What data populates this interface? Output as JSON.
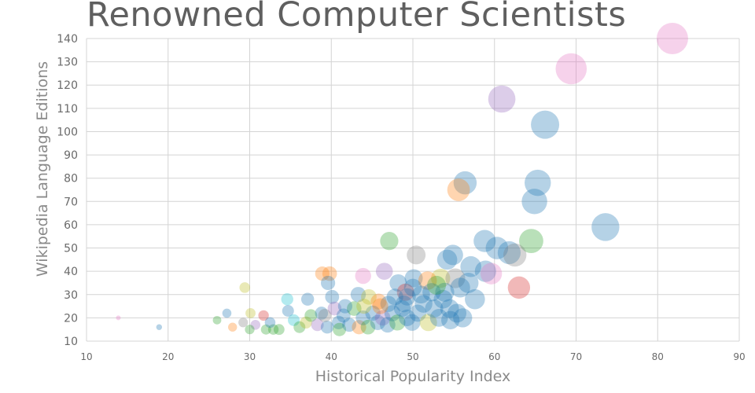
{
  "chart_data": {
    "type": "scatter",
    "title": "Renowned Computer Scientists",
    "xlabel": "Historical Popularity Index",
    "ylabel": "Wikipedia Language Editions",
    "xlim": [
      10,
      90
    ],
    "ylim": [
      10,
      140
    ],
    "xticks": [
      10,
      20,
      30,
      40,
      50,
      60,
      70,
      80,
      90
    ],
    "yticks": [
      10,
      20,
      30,
      40,
      50,
      60,
      70,
      80,
      90,
      100,
      110,
      120,
      130,
      140
    ],
    "grid": true,
    "legend": "none",
    "colors": {
      "blue": "#1f77b4",
      "orange": "#ff7f0e",
      "green": "#2ca02c",
      "red": "#d62728",
      "purple": "#9467bd",
      "pink": "#e377c2",
      "gray": "#7f7f7f",
      "olive": "#bcbd22",
      "cyan": "#17becf",
      "brown": "#8c564b"
    },
    "points": [
      {
        "x": 81.8,
        "y": 140,
        "color": "pink"
      },
      {
        "x": 69.4,
        "y": 127,
        "color": "pink"
      },
      {
        "x": 60.9,
        "y": 114,
        "color": "purple"
      },
      {
        "x": 66.2,
        "y": 103,
        "color": "blue"
      },
      {
        "x": 65.3,
        "y": 78,
        "color": "blue"
      },
      {
        "x": 56.4,
        "y": 78,
        "color": "blue"
      },
      {
        "x": 55.6,
        "y": 75,
        "color": "orange"
      },
      {
        "x": 64.9,
        "y": 70,
        "color": "blue"
      },
      {
        "x": 73.6,
        "y": 59,
        "color": "blue"
      },
      {
        "x": 64.5,
        "y": 53,
        "color": "green"
      },
      {
        "x": 58.8,
        "y": 53,
        "color": "blue"
      },
      {
        "x": 60.3,
        "y": 50,
        "color": "blue"
      },
      {
        "x": 61.8,
        "y": 48,
        "color": "blue"
      },
      {
        "x": 62.5,
        "y": 47,
        "color": "gray"
      },
      {
        "x": 54.9,
        "y": 47,
        "color": "blue"
      },
      {
        "x": 50.4,
        "y": 47,
        "color": "gray"
      },
      {
        "x": 47.1,
        "y": 53,
        "color": "green"
      },
      {
        "x": 54.2,
        "y": 45,
        "color": "blue"
      },
      {
        "x": 57.1,
        "y": 42,
        "color": "blue"
      },
      {
        "x": 58.9,
        "y": 40,
        "color": "blue"
      },
      {
        "x": 59.6,
        "y": 39,
        "color": "pink"
      },
      {
        "x": 46.5,
        "y": 40,
        "color": "purple"
      },
      {
        "x": 43.9,
        "y": 38,
        "color": "pink"
      },
      {
        "x": 38.9,
        "y": 39,
        "color": "orange"
      },
      {
        "x": 39.8,
        "y": 39,
        "color": "orange"
      },
      {
        "x": 39.6,
        "y": 35,
        "color": "blue"
      },
      {
        "x": 50.1,
        "y": 37,
        "color": "blue"
      },
      {
        "x": 53.4,
        "y": 37,
        "color": "olive"
      },
      {
        "x": 55.2,
        "y": 37,
        "color": "gray"
      },
      {
        "x": 51.8,
        "y": 36,
        "color": "orange"
      },
      {
        "x": 48.2,
        "y": 35,
        "color": "blue"
      },
      {
        "x": 56.8,
        "y": 35,
        "color": "blue"
      },
      {
        "x": 63.0,
        "y": 33,
        "color": "red"
      },
      {
        "x": 49.1,
        "y": 31,
        "color": "red"
      },
      {
        "x": 52.3,
        "y": 31,
        "color": "blue"
      },
      {
        "x": 55.8,
        "y": 33,
        "color": "blue"
      },
      {
        "x": 57.6,
        "y": 28,
        "color": "blue"
      },
      {
        "x": 29.4,
        "y": 33,
        "color": "olive"
      },
      {
        "x": 34.6,
        "y": 28,
        "color": "cyan"
      },
      {
        "x": 37.1,
        "y": 28,
        "color": "blue"
      },
      {
        "x": 40.1,
        "y": 29,
        "color": "blue"
      },
      {
        "x": 43.3,
        "y": 30,
        "color": "blue"
      },
      {
        "x": 44.6,
        "y": 29,
        "color": "olive"
      },
      {
        "x": 45.8,
        "y": 27,
        "color": "orange"
      },
      {
        "x": 47.0,
        "y": 26,
        "color": "blue"
      },
      {
        "x": 49.3,
        "y": 29,
        "color": "blue"
      },
      {
        "x": 53.7,
        "y": 28,
        "color": "blue"
      },
      {
        "x": 54.5,
        "y": 24,
        "color": "blue"
      },
      {
        "x": 27.2,
        "y": 22,
        "color": "blue"
      },
      {
        "x": 26.0,
        "y": 19,
        "color": "green"
      },
      {
        "x": 18.9,
        "y": 16,
        "color": "blue"
      },
      {
        "x": 13.9,
        "y": 20,
        "color": "pink"
      },
      {
        "x": 27.9,
        "y": 16,
        "color": "orange"
      },
      {
        "x": 29.2,
        "y": 18,
        "color": "gray"
      },
      {
        "x": 30.1,
        "y": 22,
        "color": "olive"
      },
      {
        "x": 30.7,
        "y": 17,
        "color": "purple"
      },
      {
        "x": 31.7,
        "y": 21,
        "color": "red"
      },
      {
        "x": 30.0,
        "y": 15,
        "color": "green"
      },
      {
        "x": 32.0,
        "y": 15,
        "color": "green"
      },
      {
        "x": 32.9,
        "y": 15,
        "color": "green"
      },
      {
        "x": 33.6,
        "y": 15,
        "color": "green"
      },
      {
        "x": 32.5,
        "y": 18,
        "color": "blue"
      },
      {
        "x": 34.7,
        "y": 23,
        "color": "blue"
      },
      {
        "x": 35.4,
        "y": 19,
        "color": "cyan"
      },
      {
        "x": 36.1,
        "y": 16,
        "color": "green"
      },
      {
        "x": 36.9,
        "y": 18,
        "color": "olive"
      },
      {
        "x": 37.5,
        "y": 21,
        "color": "green"
      },
      {
        "x": 38.3,
        "y": 17,
        "color": "purple"
      },
      {
        "x": 38.8,
        "y": 22,
        "color": "blue"
      },
      {
        "x": 39.5,
        "y": 16,
        "color": "blue"
      },
      {
        "x": 40.4,
        "y": 24,
        "color": "purple"
      },
      {
        "x": 40.9,
        "y": 18,
        "color": "blue"
      },
      {
        "x": 41.5,
        "y": 21,
        "color": "blue"
      },
      {
        "x": 41.0,
        "y": 15,
        "color": "green"
      },
      {
        "x": 42.2,
        "y": 17,
        "color": "blue"
      },
      {
        "x": 42.8,
        "y": 24,
        "color": "green"
      },
      {
        "x": 43.4,
        "y": 16,
        "color": "orange"
      },
      {
        "x": 43.9,
        "y": 20,
        "color": "blue"
      },
      {
        "x": 44.5,
        "y": 16,
        "color": "green"
      },
      {
        "x": 45.1,
        "y": 22,
        "color": "blue"
      },
      {
        "x": 45.7,
        "y": 18,
        "color": "blue"
      },
      {
        "x": 46.3,
        "y": 20,
        "color": "purple"
      },
      {
        "x": 46.9,
        "y": 17,
        "color": "blue"
      },
      {
        "x": 47.5,
        "y": 22,
        "color": "blue"
      },
      {
        "x": 48.1,
        "y": 18,
        "color": "green"
      },
      {
        "x": 48.7,
        "y": 24,
        "color": "blue"
      },
      {
        "x": 49.3,
        "y": 20,
        "color": "blue"
      },
      {
        "x": 49.9,
        "y": 18,
        "color": "blue"
      },
      {
        "x": 50.6,
        "y": 22,
        "color": "blue"
      },
      {
        "x": 51.3,
        "y": 26,
        "color": "blue"
      },
      {
        "x": 51.9,
        "y": 18,
        "color": "olive"
      },
      {
        "x": 52.6,
        "y": 24,
        "color": "blue"
      },
      {
        "x": 53.2,
        "y": 20,
        "color": "blue"
      },
      {
        "x": 53.9,
        "y": 31,
        "color": "blue"
      },
      {
        "x": 54.6,
        "y": 19,
        "color": "blue"
      },
      {
        "x": 55.4,
        "y": 22,
        "color": "blue"
      },
      {
        "x": 56.1,
        "y": 20,
        "color": "blue"
      },
      {
        "x": 47.8,
        "y": 29,
        "color": "blue"
      },
      {
        "x": 50.0,
        "y": 33,
        "color": "blue"
      },
      {
        "x": 51.0,
        "y": 30,
        "color": "blue"
      },
      {
        "x": 52.9,
        "y": 34,
        "color": "green"
      },
      {
        "x": 48.9,
        "y": 26,
        "color": "blue"
      },
      {
        "x": 41.7,
        "y": 25,
        "color": "blue"
      },
      {
        "x": 44.0,
        "y": 25,
        "color": "olive"
      },
      {
        "x": 46.0,
        "y": 25,
        "color": "orange"
      },
      {
        "x": 39.2,
        "y": 21,
        "color": "gray"
      }
    ]
  }
}
